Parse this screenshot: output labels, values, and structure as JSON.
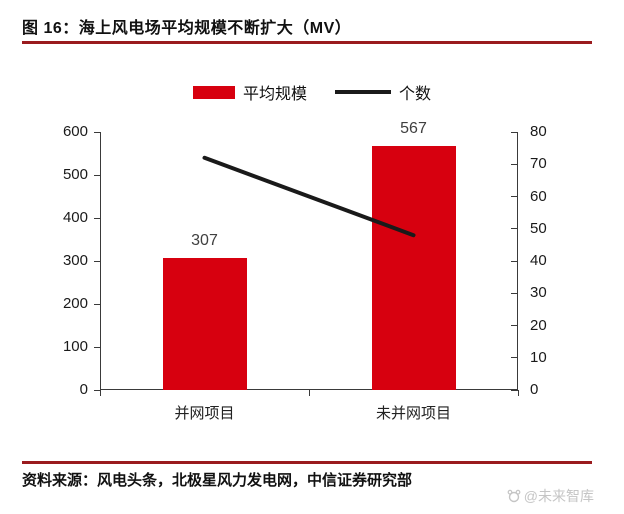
{
  "page": {
    "title": "图 16：海上风电场平均规模不断扩大（MV）",
    "source": "资料来源：风电头条，北极星风力发电网，中信证券研究部",
    "watermark": "@未来智库",
    "accent_color": "#9a1b1e"
  },
  "chart_data": {
    "type": "bar",
    "subtype": "combo-bar-line",
    "title": "图 16：海上风电场平均规模不断扩大（MV）",
    "categories": [
      "并网项目",
      "未并网项目"
    ],
    "series": [
      {
        "name": "平均规模",
        "type": "bar",
        "axis": "left",
        "color": "#d7000f",
        "values": [
          307,
          567
        ]
      },
      {
        "name": "个数",
        "type": "line",
        "axis": "right",
        "color": "#1a1a1a",
        "values": [
          72,
          48
        ]
      }
    ],
    "bar_value_labels": [
      "307",
      "567"
    ],
    "left_axis": {
      "min": 0,
      "max": 600,
      "step": 100,
      "ticks": [
        "0",
        "100",
        "200",
        "300",
        "400",
        "500",
        "600"
      ]
    },
    "right_axis": {
      "min": 0,
      "max": 80,
      "step": 10,
      "ticks": [
        "0",
        "10",
        "20",
        "30",
        "40",
        "50",
        "60",
        "70",
        "80"
      ]
    },
    "legend_position": "top",
    "grid": false
  }
}
